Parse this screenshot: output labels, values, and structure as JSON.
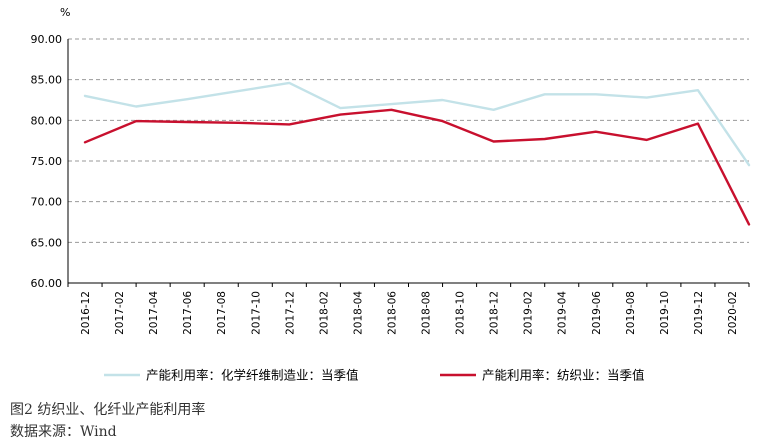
{
  "chart_data": {
    "type": "line",
    "y_unit": "%",
    "ylim": [
      60,
      90
    ],
    "yticks": [
      "60.00",
      "65.00",
      "70.00",
      "75.00",
      "80.00",
      "85.00",
      "90.00"
    ],
    "grid": "horizontal-dashed",
    "legend_position": "bottom",
    "categories": [
      "2016-12",
      "2017-02",
      "2017-04",
      "2017-06",
      "2017-08",
      "2017-10",
      "2017-12",
      "2018-02",
      "2018-04",
      "2018-06",
      "2018-08",
      "2018-10",
      "2018-12",
      "2019-02",
      "2019-04",
      "2019-06",
      "2019-08",
      "2019-10",
      "2019-12",
      "2020-02"
    ],
    "series": [
      {
        "name": "产能利用率：化学纤维制造业：当季值",
        "color": "#c3e2e8",
        "points": [
          {
            "x": "2016-12",
            "y": 83.0
          },
          {
            "x": "2017-03",
            "y": 81.7
          },
          {
            "x": "2017-06",
            "y": 82.6
          },
          {
            "x": "2017-09",
            "y": 83.6
          },
          {
            "x": "2017-12",
            "y": 84.6
          },
          {
            "x": "2018-03",
            "y": 81.5
          },
          {
            "x": "2018-06",
            "y": 82.0
          },
          {
            "x": "2018-09",
            "y": 82.5
          },
          {
            "x": "2018-12",
            "y": 81.3
          },
          {
            "x": "2019-03",
            "y": 83.2
          },
          {
            "x": "2019-06",
            "y": 83.2
          },
          {
            "x": "2019-09",
            "y": 82.8
          },
          {
            "x": "2019-12",
            "y": 83.7
          },
          {
            "x": "2020-03",
            "y": 74.5
          }
        ]
      },
      {
        "name": "产能利用率：纺织业：当季值",
        "color": "#c8102e",
        "points": [
          {
            "x": "2016-12",
            "y": 77.3
          },
          {
            "x": "2017-03",
            "y": 79.9
          },
          {
            "x": "2017-06",
            "y": 79.8
          },
          {
            "x": "2017-09",
            "y": 79.7
          },
          {
            "x": "2017-12",
            "y": 79.5
          },
          {
            "x": "2018-03",
            "y": 80.7
          },
          {
            "x": "2018-06",
            "y": 81.3
          },
          {
            "x": "2018-09",
            "y": 79.9
          },
          {
            "x": "2018-12",
            "y": 77.4
          },
          {
            "x": "2019-03",
            "y": 77.7
          },
          {
            "x": "2019-06",
            "y": 78.6
          },
          {
            "x": "2019-09",
            "y": 77.6
          },
          {
            "x": "2019-12",
            "y": 79.6
          },
          {
            "x": "2020-03",
            "y": 67.2
          }
        ]
      }
    ]
  },
  "caption": {
    "title": "图2   纺织业、化纤业产能利用率",
    "source": "数据来源：Wind"
  }
}
